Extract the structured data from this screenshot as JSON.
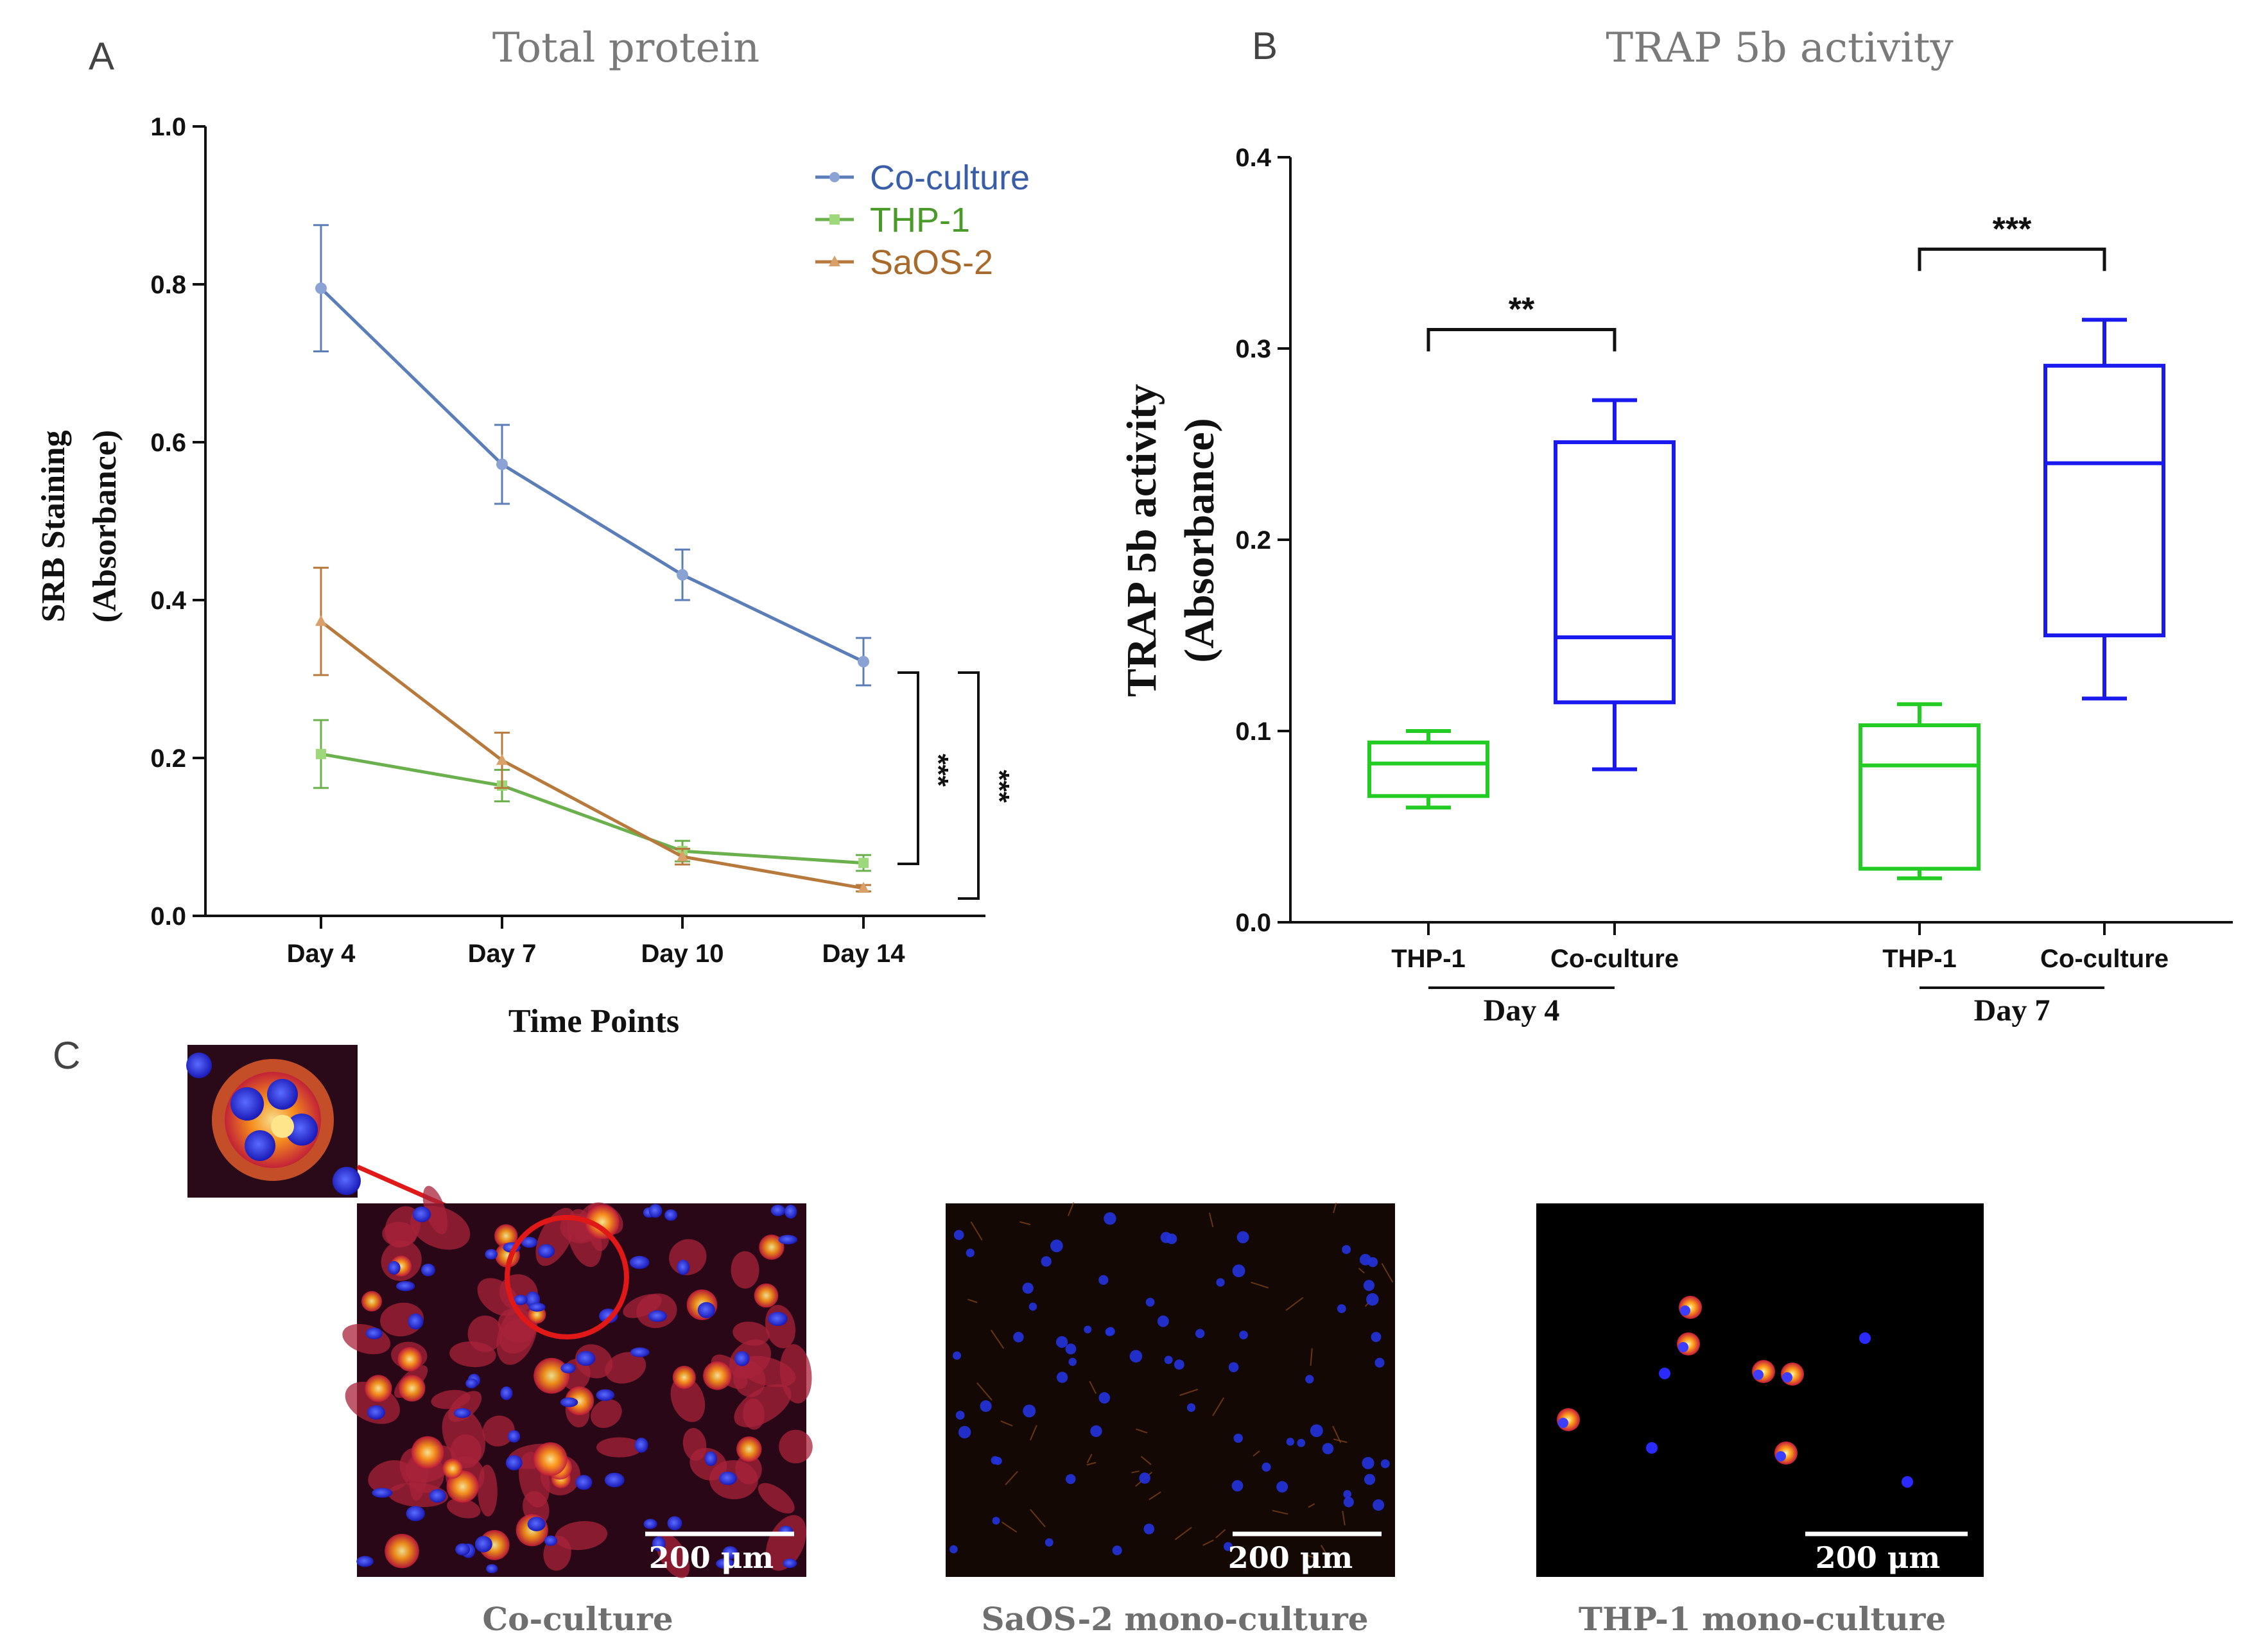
{
  "panels": {
    "A": {
      "letter": "A",
      "title": "Total protein"
    },
    "B": {
      "letter": "B",
      "title": "TRAP 5b activity"
    },
    "C": {
      "letter": "C"
    }
  },
  "chart_data": [
    {
      "type": "line",
      "title": "Total protein",
      "xlabel": "Time Points",
      "ylabel": "SRB Staining (Absorbance)",
      "ylabel_lines": [
        "SRB Staining",
        "(Absorbance)"
      ],
      "categories": [
        "Day 4",
        "Day 7",
        "Day 10",
        "Day 14"
      ],
      "ylim": [
        0,
        1.0
      ],
      "yticks": [
        "0.0",
        "0.2",
        "0.4",
        "0.6",
        "0.8",
        "1.0"
      ],
      "legend_position": "top-right",
      "series": [
        {
          "name": "Co-culture",
          "color": "#5b7db8",
          "values": [
            0.795,
            0.572,
            0.432,
            0.322
          ],
          "errors": [
            0.08,
            0.05,
            0.032,
            0.03
          ]
        },
        {
          "name": "THP-1",
          "color": "#6ab04c",
          "values": [
            0.205,
            0.165,
            0.082,
            0.067
          ],
          "errors": [
            0.043,
            0.02,
            0.013,
            0.01
          ]
        },
        {
          "name": "SaOS-2",
          "color": "#b77a3c",
          "values": [
            0.373,
            0.197,
            0.075,
            0.035
          ],
          "errors": [
            0.068,
            0.035,
            0.01,
            0.004
          ]
        }
      ],
      "significance": [
        {
          "label": "***",
          "between": [
            "Co-culture",
            "THP-1"
          ]
        },
        {
          "label": "***",
          "between": [
            "Co-culture",
            "SaOS-2"
          ]
        }
      ]
    },
    {
      "type": "box",
      "title": "TRAP 5b activity",
      "ylabel": "TRAP 5b activity (Absorbance)",
      "ylabel_lines": [
        "TRAP 5b activity",
        "(Absorbance)"
      ],
      "ylim": [
        0,
        0.4
      ],
      "yticks": [
        "0.0",
        "0.1",
        "0.2",
        "0.3",
        "0.4"
      ],
      "groups": [
        {
          "label": "Day 4",
          "boxes": [
            {
              "label": "THP-1",
              "color": "#22cc22",
              "min": 0.06,
              "q1": 0.066,
              "median": 0.083,
              "q3": 0.094,
              "max": 0.1
            },
            {
              "label": "Co-culture",
              "color": "#1a1aee",
              "min": 0.08,
              "q1": 0.115,
              "median": 0.149,
              "q3": 0.251,
              "max": 0.273
            }
          ],
          "significance": "**"
        },
        {
          "label": "Day 7",
          "boxes": [
            {
              "label": "THP-1",
              "color": "#22cc22",
              "min": 0.023,
              "q1": 0.028,
              "median": 0.082,
              "q3": 0.103,
              "max": 0.114
            },
            {
              "label": "Co-culture",
              "color": "#1a1aee",
              "min": 0.117,
              "q1": 0.15,
              "median": 0.24,
              "q3": 0.291,
              "max": 0.315
            }
          ],
          "significance": "***"
        }
      ]
    }
  ],
  "micrographs": [
    {
      "caption": "Co-culture",
      "scale": "200 μm"
    },
    {
      "caption": "SaOS-2 mono-culture",
      "scale": "200 μm"
    },
    {
      "caption": "THP-1 mono-culture",
      "scale": "200 μm"
    }
  ]
}
